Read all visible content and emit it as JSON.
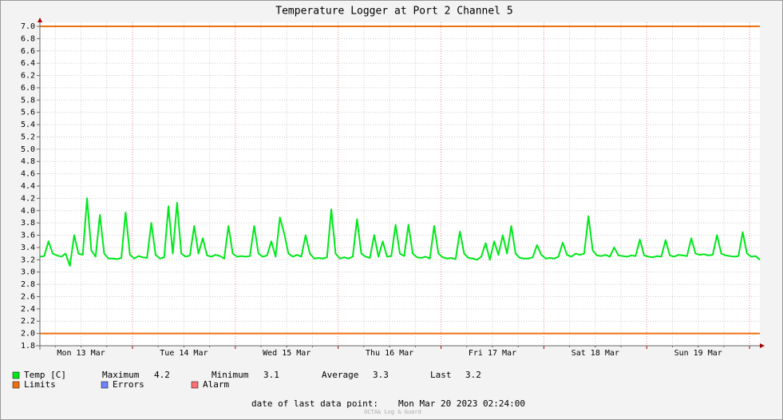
{
  "chart_data": {
    "type": "line",
    "title": "Temperature Logger at Port 2 Channel 5",
    "x": [
      0,
      1,
      2,
      3,
      4,
      5,
      6,
      7,
      8,
      9,
      10,
      11,
      12,
      13,
      14,
      15,
      16,
      17,
      18,
      19,
      20,
      21,
      22,
      23,
      24,
      25,
      26,
      27,
      28,
      29,
      30,
      31,
      32,
      33,
      34,
      35,
      36,
      37,
      38,
      39,
      40,
      41,
      42,
      43,
      44,
      45,
      46,
      47,
      48,
      49,
      50,
      51,
      52,
      53,
      54,
      55,
      56,
      57,
      58,
      59,
      60,
      61,
      62,
      63,
      64,
      65,
      66,
      67,
      68,
      69,
      70,
      71,
      72,
      73,
      74,
      75,
      76,
      77,
      78,
      79,
      80,
      81,
      82,
      83,
      84,
      85,
      86,
      87,
      88,
      89,
      90,
      91,
      92,
      93,
      94,
      95,
      96,
      97,
      98,
      99,
      100,
      101,
      102,
      103,
      104,
      105,
      106,
      107,
      108,
      109,
      110,
      111,
      112,
      113,
      114,
      115,
      116,
      117,
      118,
      119,
      120,
      121,
      122,
      123,
      124,
      125,
      126,
      127,
      128,
      129,
      130,
      131,
      132,
      133,
      134,
      135,
      136,
      137,
      138,
      139,
      140,
      141,
      142,
      143,
      144,
      145,
      146,
      147,
      148,
      149,
      150,
      151,
      152,
      153,
      154,
      155,
      156,
      157,
      158,
      159,
      160,
      161,
      162,
      163,
      164,
      165,
      166,
      167,
      168
    ],
    "series": [
      {
        "name": "Temp [C]",
        "color": "#00e81a",
        "values": [
          3.25,
          3.26,
          3.5,
          3.3,
          3.27,
          3.25,
          3.3,
          3.1,
          3.6,
          3.3,
          3.28,
          4.2,
          3.35,
          3.25,
          3.93,
          3.3,
          3.22,
          3.22,
          3.21,
          3.23,
          3.97,
          3.28,
          3.22,
          3.26,
          3.24,
          3.23,
          3.8,
          3.28,
          3.22,
          3.24,
          4.07,
          3.3,
          4.13,
          3.3,
          3.25,
          3.27,
          3.75,
          3.3,
          3.55,
          3.27,
          3.25,
          3.28,
          3.26,
          3.22,
          3.75,
          3.3,
          3.25,
          3.26,
          3.25,
          3.26,
          3.75,
          3.3,
          3.25,
          3.27,
          3.5,
          3.25,
          3.89,
          3.63,
          3.3,
          3.25,
          3.28,
          3.25,
          3.6,
          3.3,
          3.22,
          3.23,
          3.22,
          3.24,
          4.02,
          3.3,
          3.22,
          3.24,
          3.22,
          3.25,
          3.86,
          3.3,
          3.25,
          3.23,
          3.6,
          3.25,
          3.5,
          3.25,
          3.26,
          3.77,
          3.3,
          3.26,
          3.77,
          3.3,
          3.24,
          3.23,
          3.25,
          3.22,
          3.75,
          3.3,
          3.24,
          3.22,
          3.23,
          3.21,
          3.66,
          3.3,
          3.23,
          3.22,
          3.2,
          3.25,
          3.47,
          3.2,
          3.5,
          3.28,
          3.6,
          3.3,
          3.75,
          3.3,
          3.23,
          3.22,
          3.22,
          3.24,
          3.44,
          3.28,
          3.22,
          3.23,
          3.22,
          3.25,
          3.48,
          3.28,
          3.25,
          3.3,
          3.28,
          3.3,
          3.91,
          3.35,
          3.27,
          3.26,
          3.28,
          3.25,
          3.4,
          3.27,
          3.26,
          3.25,
          3.27,
          3.26,
          3.53,
          3.27,
          3.25,
          3.24,
          3.26,
          3.25,
          3.52,
          3.27,
          3.25,
          3.28,
          3.27,
          3.26,
          3.55,
          3.3,
          3.28,
          3.29,
          3.27,
          3.28,
          3.6,
          3.3,
          3.27,
          3.26,
          3.25,
          3.26,
          3.65,
          3.3,
          3.25,
          3.26,
          3.2
        ]
      }
    ],
    "xlim": [
      0,
      168
    ],
    "xticks": [
      {
        "value": 9.6,
        "label": "Mon 13 Mar"
      },
      {
        "value": 33.6,
        "label": "Tue 14 Mar"
      },
      {
        "value": 57.6,
        "label": "Wed 15 Mar"
      },
      {
        "value": 81.6,
        "label": "Thu 16 Mar"
      },
      {
        "value": 105.6,
        "label": "Fri 17 Mar"
      },
      {
        "value": 129.6,
        "label": "Sat 18 Mar"
      },
      {
        "value": 153.6,
        "label": "Sun 19 Mar"
      }
    ],
    "x_major_grid": [
      21.6,
      45.6,
      69.6,
      93.6,
      117.6,
      141.6,
      165.6
    ],
    "x_minor_grid": [
      3.6,
      9.6,
      15.6,
      27.6,
      33.6,
      39.6,
      51.6,
      57.6,
      63.6,
      75.6,
      81.6,
      87.6,
      99.6,
      105.6,
      111.6,
      123.6,
      129.6,
      135.6,
      147.6,
      153.6,
      159.6
    ],
    "ylim": [
      1.8,
      7.0
    ],
    "yticks": [
      1.8,
      {
        "value": 2.0,
        "label": "2.0"
      },
      2.2,
      2.4,
      2.6,
      2.8,
      {
        "value": 3.0,
        "label": "3.0"
      },
      3.2,
      3.4,
      3.6,
      3.8,
      {
        "value": 4.0,
        "label": "4.0"
      },
      4.2,
      4.4,
      4.6,
      4.8,
      {
        "value": 5.0,
        "label": "5.0"
      },
      5.2,
      5.4,
      5.6,
      5.8,
      {
        "value": 6.0,
        "label": "6.0"
      },
      6.2,
      6.4,
      6.6,
      6.8,
      {
        "value": 7.0,
        "label": "7.0"
      }
    ],
    "grid": true,
    "limits": {
      "name": "Limits",
      "color": "#f07010",
      "values": [
        2.0,
        7.0
      ]
    },
    "errors": {
      "name": "Errors",
      "color": "#7080ff"
    },
    "alarm": {
      "name": "Alarm",
      "color": "#ff7070"
    },
    "stats": [
      {
        "label": "Maximum",
        "value": 4.2
      },
      {
        "label": "Minimum",
        "value": 3.1
      },
      {
        "label": "Average",
        "value": 3.3
      },
      {
        "label": "Last",
        "value": 3.2
      }
    ],
    "last_data": {
      "label": "date of last data point:",
      "value": "Mon Mar 20 2023 02:24:00"
    },
    "footer": "OCTA& Log & Guard"
  }
}
